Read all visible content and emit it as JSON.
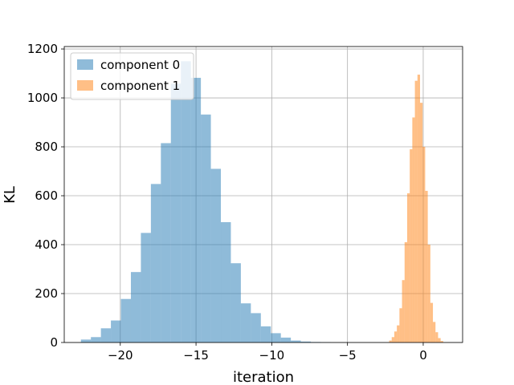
{
  "chart_data": {
    "type": "bar",
    "xlabel": "iteration",
    "ylabel": "KL",
    "xlim": [
      -23.7,
      2.6
    ],
    "ylim": [
      0,
      1210
    ],
    "grid": true,
    "legend_position": "top-left",
    "x_ticks": [
      -20,
      -15,
      -10,
      -5,
      0
    ],
    "x_tick_labels": [
      "−20",
      "−15",
      "−10",
      "−5",
      "0"
    ],
    "y_ticks": [
      0,
      200,
      400,
      600,
      800,
      1000,
      1200
    ],
    "y_tick_labels": [
      "0",
      "200",
      "400",
      "600",
      "800",
      "1000",
      "1200"
    ],
    "series": [
      {
        "name": "component 0",
        "color": "#1f77b4",
        "opacity": 0.5,
        "bin_edges": [
          -22.6,
          -21.94,
          -21.28,
          -20.62,
          -19.96,
          -19.3,
          -18.64,
          -17.98,
          -17.32,
          -16.66,
          -16.0,
          -15.34,
          -14.68,
          -14.02,
          -13.36,
          -12.7,
          -12.04,
          -11.38,
          -10.72,
          -10.06,
          -9.4,
          -8.74,
          -8.08,
          -7.42,
          -6.76,
          -6.1
        ],
        "counts": [
          12,
          22,
          58,
          90,
          178,
          288,
          448,
          648,
          815,
          1058,
          1150,
          1082,
          932,
          710,
          492,
          324,
          160,
          120,
          66,
          38,
          20,
          8,
          4,
          2,
          1
        ]
      },
      {
        "name": "component 1",
        "color": "#ff7f0e",
        "opacity": 0.5,
        "bin_edges": [
          -2.25,
          -2.08,
          -1.91,
          -1.74,
          -1.57,
          -1.4,
          -1.23,
          -1.06,
          -0.89,
          -0.72,
          -0.55,
          -0.38,
          -0.21,
          -0.04,
          0.13,
          0.3,
          0.47,
          0.64,
          0.81,
          0.98,
          1.15,
          1.32
        ],
        "counts": [
          8,
          22,
          45,
          70,
          140,
          255,
          410,
          610,
          790,
          920,
          1070,
          1095,
          980,
          800,
          620,
          400,
          162,
          84,
          42,
          18,
          6
        ]
      }
    ]
  }
}
